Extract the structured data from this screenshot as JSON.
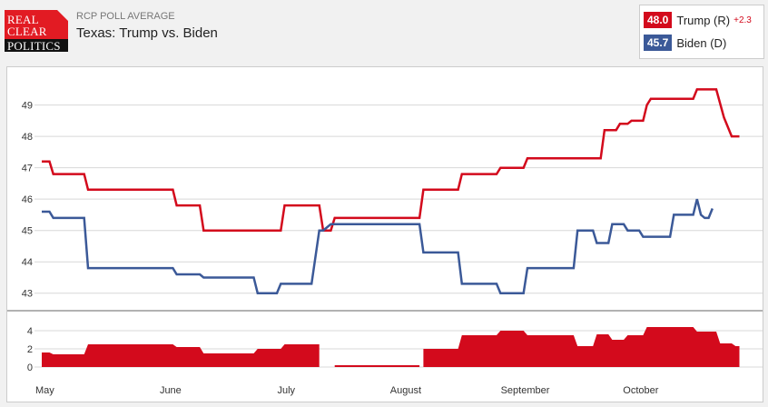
{
  "header": {
    "logo_lines": [
      "REAL",
      "CLEAR",
      "POLITICS"
    ],
    "kicker": "RCP POLL AVERAGE",
    "title": "Texas: Trump vs. Biden"
  },
  "legend": {
    "items": [
      {
        "value": "48.0",
        "name": "Trump (R)",
        "spread": "+2.3",
        "color": "#d30a1c"
      },
      {
        "value": "45.7",
        "name": "Biden (D)",
        "spread": "",
        "color": "#3b5998"
      }
    ]
  },
  "colors": {
    "trump": "#d30a1c",
    "biden": "#3b5998",
    "grid": "#d8d8d8"
  },
  "chart_data": [
    {
      "type": "line",
      "title": "",
      "xlabel": "",
      "ylabel": "",
      "ylim": [
        42.5,
        49.8
      ],
      "yticks": [
        43,
        44,
        45,
        46,
        47,
        48,
        49
      ],
      "xlim": [
        "2020-04-30",
        "2020-11-03"
      ],
      "xtick_labels": [
        {
          "label": "May",
          "date": "2020-05-01"
        },
        {
          "label": "June",
          "date": "2020-06-01"
        },
        {
          "label": "July",
          "date": "2020-07-01"
        },
        {
          "label": "August",
          "date": "2020-08-01"
        },
        {
          "label": "September",
          "date": "2020-09-01"
        },
        {
          "label": "October",
          "date": "2020-10-01"
        }
      ],
      "grid": true,
      "series": [
        {
          "name": "Trump (R)",
          "color": "#d30a1c",
          "points": [
            [
              "2020-04-30",
              47.2
            ],
            [
              "2020-05-02",
              47.2
            ],
            [
              "2020-05-03",
              46.8
            ],
            [
              "2020-05-11",
              46.8
            ],
            [
              "2020-05-12",
              46.3
            ],
            [
              "2020-06-03",
              46.3
            ],
            [
              "2020-06-04",
              45.8
            ],
            [
              "2020-06-10",
              45.8
            ],
            [
              "2020-06-11",
              45.0
            ],
            [
              "2020-07-01",
              45.0
            ],
            [
              "2020-07-02",
              45.8
            ],
            [
              "2020-07-11",
              45.8
            ],
            [
              "2020-07-12",
              45.0
            ],
            [
              "2020-07-14",
              45.0
            ],
            [
              "2020-07-15",
              45.4
            ],
            [
              "2020-08-06",
              45.4
            ],
            [
              "2020-08-07",
              46.3
            ],
            [
              "2020-08-16",
              46.3
            ],
            [
              "2020-08-17",
              46.8
            ],
            [
              "2020-08-26",
              46.8
            ],
            [
              "2020-08-27",
              47.0
            ],
            [
              "2020-09-02",
              47.0
            ],
            [
              "2020-09-03",
              47.3
            ],
            [
              "2020-09-22",
              47.3
            ],
            [
              "2020-09-23",
              48.2
            ],
            [
              "2020-09-26",
              48.2
            ],
            [
              "2020-09-27",
              48.4
            ],
            [
              "2020-09-29",
              48.4
            ],
            [
              "2020-09-30",
              48.5
            ],
            [
              "2020-10-03",
              48.5
            ],
            [
              "2020-10-04",
              49.0
            ],
            [
              "2020-10-05",
              49.2
            ],
            [
              "2020-10-16",
              49.2
            ],
            [
              "2020-10-17",
              49.5
            ],
            [
              "2020-10-22",
              49.5
            ],
            [
              "2020-10-24",
              48.6
            ],
            [
              "2020-10-26",
              48.0
            ],
            [
              "2020-10-28",
              48.0
            ]
          ]
        },
        {
          "name": "Biden (D)",
          "color": "#3b5998",
          "points": [
            [
              "2020-04-30",
              45.6
            ],
            [
              "2020-05-02",
              45.6
            ],
            [
              "2020-05-03",
              45.4
            ],
            [
              "2020-05-11",
              45.4
            ],
            [
              "2020-05-12",
              43.8
            ],
            [
              "2020-06-03",
              43.8
            ],
            [
              "2020-06-04",
              43.6
            ],
            [
              "2020-06-10",
              43.6
            ],
            [
              "2020-06-11",
              43.5
            ],
            [
              "2020-06-24",
              43.5
            ],
            [
              "2020-06-25",
              43.0
            ],
            [
              "2020-06-30",
              43.0
            ],
            [
              "2020-07-01",
              43.3
            ],
            [
              "2020-07-09",
              43.3
            ],
            [
              "2020-07-11",
              45.0
            ],
            [
              "2020-07-12",
              45.0
            ],
            [
              "2020-07-14",
              45.2
            ],
            [
              "2020-08-06",
              45.2
            ],
            [
              "2020-08-07",
              44.3
            ],
            [
              "2020-08-16",
              44.3
            ],
            [
              "2020-08-17",
              43.3
            ],
            [
              "2020-08-26",
              43.3
            ],
            [
              "2020-08-27",
              43.0
            ],
            [
              "2020-09-02",
              43.0
            ],
            [
              "2020-09-03",
              43.8
            ],
            [
              "2020-09-15",
              43.8
            ],
            [
              "2020-09-16",
              45.0
            ],
            [
              "2020-09-20",
              45.0
            ],
            [
              "2020-09-21",
              44.6
            ],
            [
              "2020-09-24",
              44.6
            ],
            [
              "2020-09-25",
              45.2
            ],
            [
              "2020-09-28",
              45.2
            ],
            [
              "2020-09-29",
              45.0
            ],
            [
              "2020-10-02",
              45.0
            ],
            [
              "2020-10-03",
              44.8
            ],
            [
              "2020-10-10",
              44.8
            ],
            [
              "2020-10-11",
              45.5
            ],
            [
              "2020-10-16",
              45.5
            ],
            [
              "2020-10-17",
              46.0
            ],
            [
              "2020-10-18",
              45.5
            ],
            [
              "2020-10-19",
              45.4
            ],
            [
              "2020-10-20",
              45.4
            ],
            [
              "2020-10-21",
              45.7
            ]
          ]
        }
      ]
    },
    {
      "type": "area",
      "title": "",
      "xlabel": "",
      "ylabel": "",
      "ylim": [
        -0.3,
        5
      ],
      "yticks": [
        0,
        2,
        4
      ],
      "color": "#d30a1c",
      "segments": [
        [
          [
            "2020-04-30",
            1.6
          ],
          [
            "2020-05-02",
            1.6
          ],
          [
            "2020-05-03",
            1.4
          ],
          [
            "2020-05-11",
            1.4
          ],
          [
            "2020-05-12",
            2.5
          ],
          [
            "2020-06-03",
            2.5
          ],
          [
            "2020-06-04",
            2.2
          ],
          [
            "2020-06-10",
            2.2
          ],
          [
            "2020-06-11",
            1.5
          ],
          [
            "2020-06-24",
            1.5
          ],
          [
            "2020-06-25",
            2.0
          ],
          [
            "2020-07-01",
            2.0
          ],
          [
            "2020-07-02",
            2.5
          ],
          [
            "2020-07-11",
            2.5
          ],
          [
            "2020-07-11",
            0
          ]
        ],
        [
          [
            "2020-07-15",
            0.2
          ],
          [
            "2020-08-06",
            0.2
          ],
          [
            "2020-08-06",
            0
          ]
        ],
        [
          [
            "2020-08-07",
            2.0
          ],
          [
            "2020-08-16",
            2.0
          ],
          [
            "2020-08-17",
            3.5
          ],
          [
            "2020-08-26",
            3.5
          ],
          [
            "2020-08-27",
            4.0
          ],
          [
            "2020-09-02",
            4.0
          ],
          [
            "2020-09-03",
            3.5
          ],
          [
            "2020-09-15",
            3.5
          ],
          [
            "2020-09-16",
            2.3
          ],
          [
            "2020-09-20",
            2.3
          ],
          [
            "2020-09-21",
            3.6
          ],
          [
            "2020-09-24",
            3.6
          ],
          [
            "2020-09-25",
            3.0
          ],
          [
            "2020-09-28",
            3.0
          ],
          [
            "2020-09-29",
            3.5
          ],
          [
            "2020-10-03",
            3.5
          ],
          [
            "2020-10-04",
            4.4
          ],
          [
            "2020-10-16",
            4.4
          ],
          [
            "2020-10-17",
            3.9
          ],
          [
            "2020-10-22",
            3.9
          ],
          [
            "2020-10-23",
            2.6
          ],
          [
            "2020-10-26",
            2.6
          ],
          [
            "2020-10-27",
            2.3
          ],
          [
            "2020-10-28",
            2.3
          ]
        ]
      ]
    }
  ]
}
